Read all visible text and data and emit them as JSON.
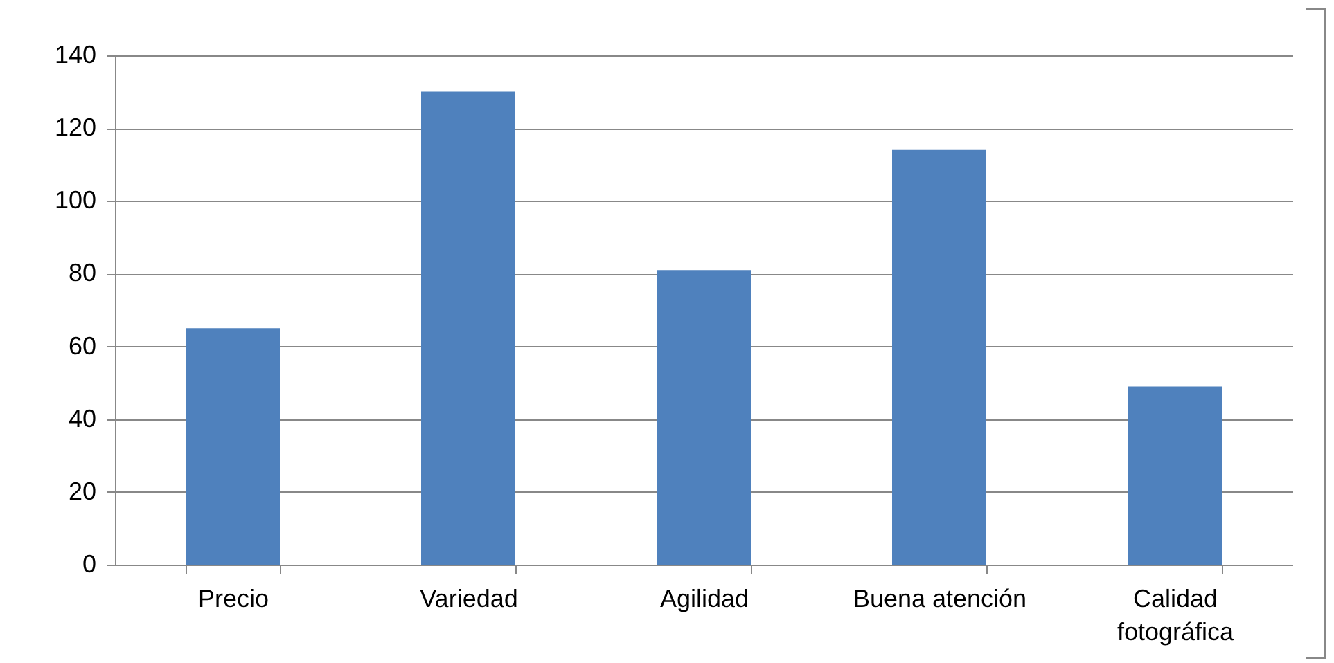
{
  "chart_data": {
    "type": "bar",
    "categories": [
      "Precio",
      "Variedad",
      "Agilidad",
      "Buena atención",
      "Calidad fotográfica"
    ],
    "values": [
      65,
      130,
      81,
      114,
      49
    ],
    "color": "#4f81bd",
    "ylim": [
      0,
      140
    ],
    "yticks": [
      0,
      20,
      40,
      60,
      80,
      100,
      120,
      140
    ],
    "grid": "y"
  }
}
